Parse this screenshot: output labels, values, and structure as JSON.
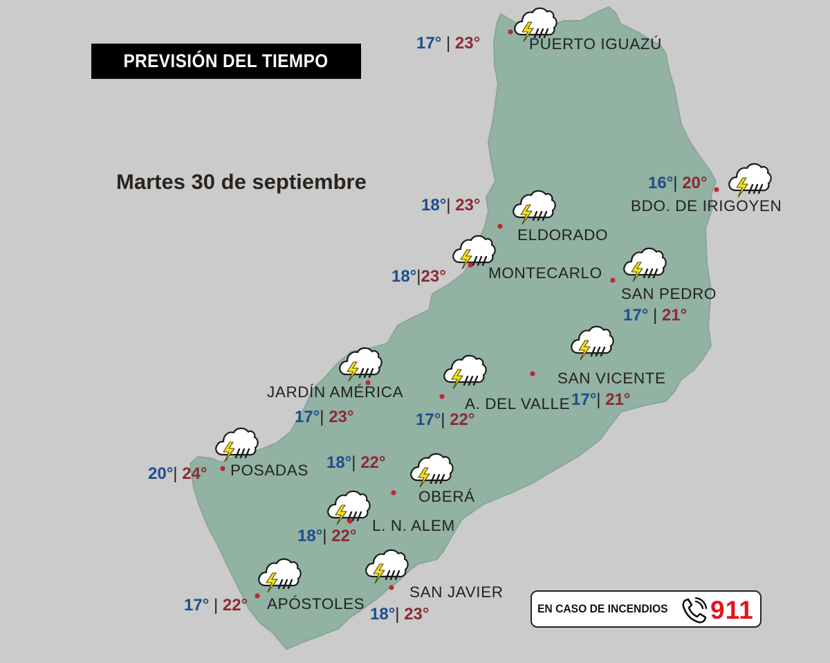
{
  "header": {
    "title": "PREVISIÓN DEL TIEMPO",
    "date": "Martes 30 de septiembre"
  },
  "colors": {
    "min_temp": "#1d4e8c",
    "max_temp": "#8b2a35",
    "land": "#92b2a3",
    "background": "#cbcbcb",
    "city_dot": "#c0282d",
    "emergency_number": "#e0151b"
  },
  "weather_icon": "thunderstorm-rain-icon",
  "emergency": {
    "label": "EN CASO DE INCENDIOS",
    "number": "911",
    "icon": "phone-icon"
  },
  "cities": [
    {
      "id": "puerto-iguazu",
      "name": "PUERTO IGUAZÚ",
      "min": "17°",
      "max": "23°",
      "sep": " | ",
      "icon": "thunderstorm-rain-icon"
    },
    {
      "id": "bdo-de-irigoyen",
      "name": "BDO. DE IRIGOYEN",
      "min": "16°",
      "max": "20°",
      "sep": "| ",
      "icon": "thunderstorm-rain-icon"
    },
    {
      "id": "eldorado",
      "name": "ELDORADO",
      "min": "18°",
      "max": "23°",
      "sep": "| ",
      "icon": "thunderstorm-rain-icon"
    },
    {
      "id": "montecarlo",
      "name": "MONTECARLO",
      "min": "18°",
      "max": "23°",
      "sep": "|",
      "icon": "thunderstorm-rain-icon"
    },
    {
      "id": "san-pedro",
      "name": "SAN PEDRO",
      "min": "17°",
      "max": "21°",
      "sep": " | ",
      "icon": "thunderstorm-rain-icon"
    },
    {
      "id": "san-vicente",
      "name": "SAN VICENTE",
      "min": "17°",
      "max": "21°",
      "sep": "| ",
      "icon": "thunderstorm-rain-icon"
    },
    {
      "id": "jardin-america",
      "name": "JARDÍN AMÉRICA",
      "min": "17°",
      "max": "23°",
      "sep": "| ",
      "icon": "thunderstorm-rain-icon"
    },
    {
      "id": "a-del-valle",
      "name": "A. DEL VALLE",
      "min": "17°",
      "max": "22°",
      "sep": "| ",
      "icon": "thunderstorm-rain-icon"
    },
    {
      "id": "posadas",
      "name": "POSADAS",
      "min": "20°",
      "max": "24°",
      "sep": "| ",
      "icon": "thunderstorm-rain-icon"
    },
    {
      "id": "obera",
      "name": "OBERÁ",
      "min": "18°",
      "max": "22°",
      "sep": "| ",
      "icon": "thunderstorm-rain-icon"
    },
    {
      "id": "l-n-alem",
      "name": "L. N. ALEM",
      "min": "18°",
      "max": "22°",
      "sep": "| ",
      "icon": "thunderstorm-rain-icon"
    },
    {
      "id": "apostoles",
      "name": "APÓSTOLES",
      "min": "17°",
      "max": "22°",
      "sep": " | ",
      "icon": "thunderstorm-rain-icon"
    },
    {
      "id": "san-javier",
      "name": "SAN JAVIER",
      "min": "18°",
      "max": "23°",
      "sep": "| ",
      "icon": "thunderstorm-rain-icon"
    }
  ]
}
